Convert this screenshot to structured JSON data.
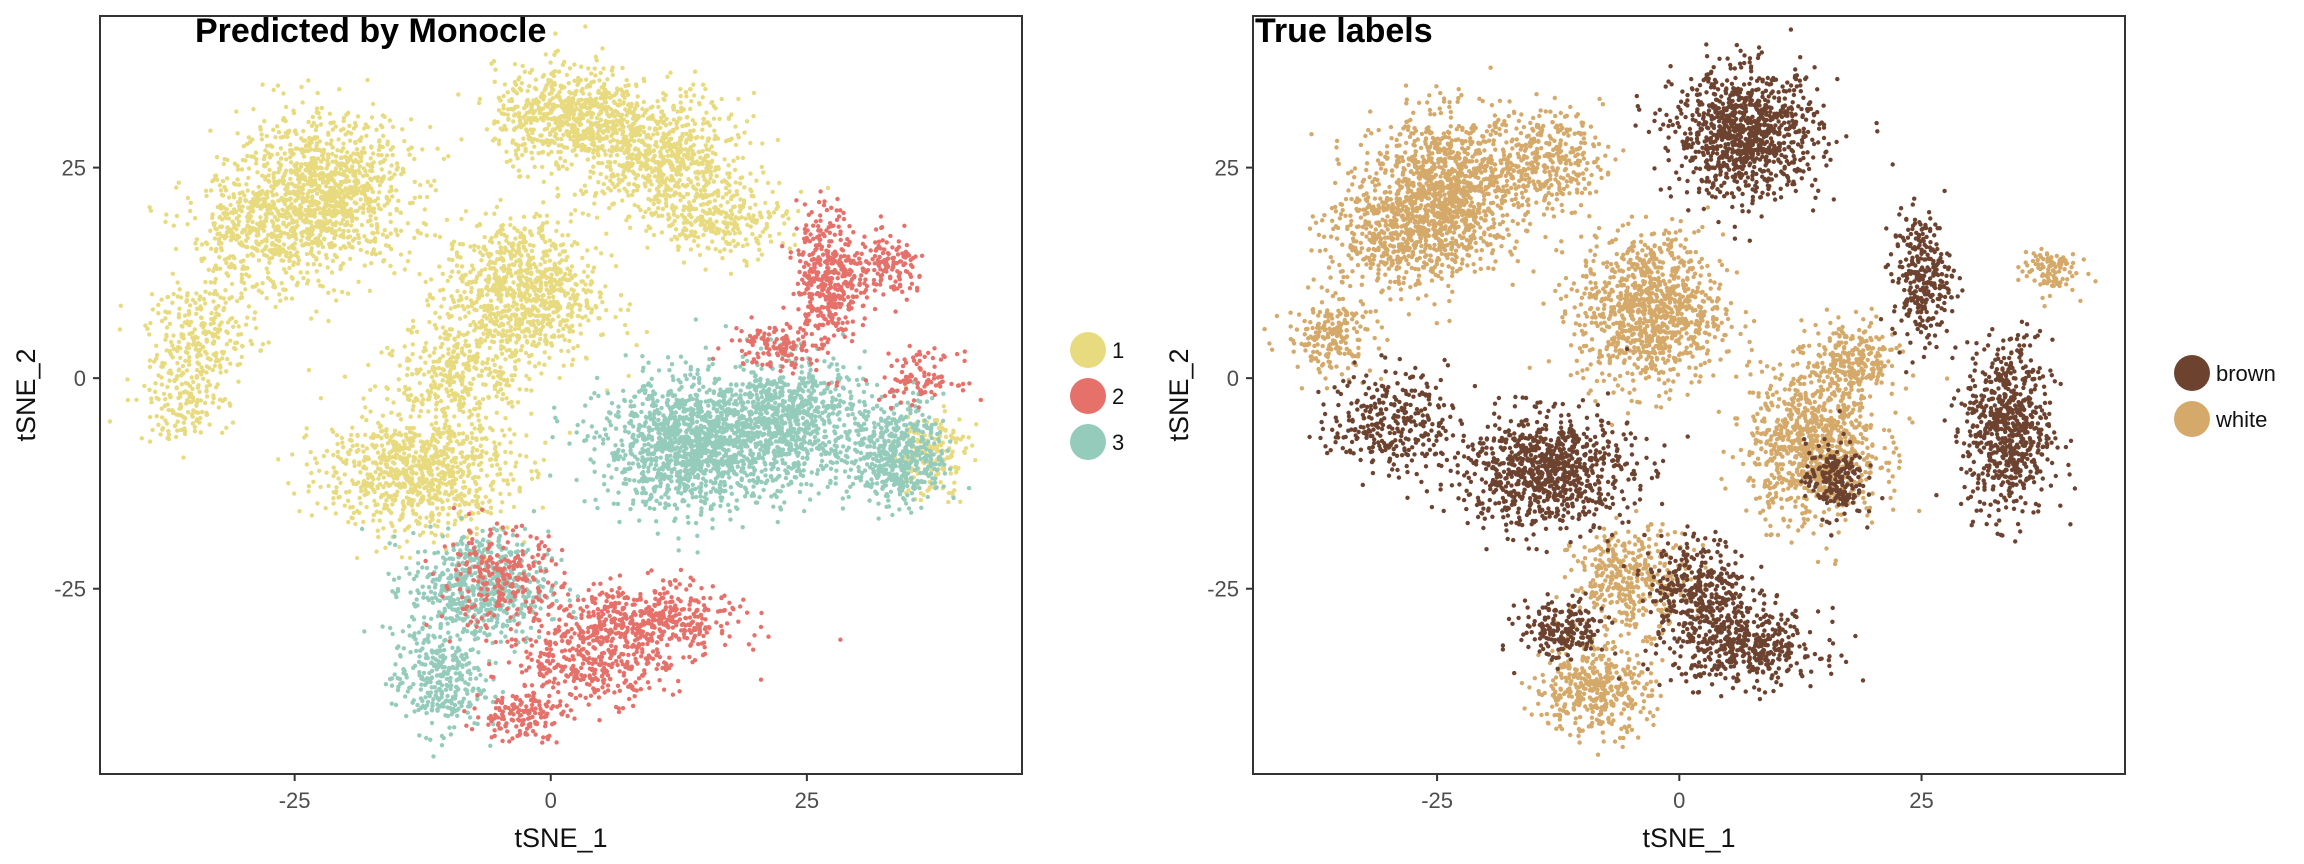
{
  "chart_data": [
    {
      "type": "scatter",
      "title": "Predicted by Monocle",
      "xlabel": "tSNE_1",
      "ylabel": "tSNE_2",
      "xlim": [
        -44,
        46
      ],
      "ylim": [
        -47,
        43
      ],
      "xticks": [
        -25,
        0,
        25
      ],
      "xtick_labels": [
        "-25",
        "0",
        "25"
      ],
      "yticks": [
        25,
        0,
        -25
      ],
      "ytick_labels": [
        "25",
        "0",
        "-25"
      ],
      "grid": false,
      "legend": "right",
      "series": [
        {
          "name": "1",
          "color": "#e8da7e"
        },
        {
          "name": "2",
          "color": "#e5716a"
        },
        {
          "name": "3",
          "color": "#94cbbb"
        }
      ],
      "clusters": [
        {
          "series": "1",
          "x": -22,
          "y": 22,
          "sx": 5.5,
          "sy": 6,
          "n": 1100
        },
        {
          "series": "1",
          "x": -29,
          "y": 17,
          "sx": 4.5,
          "sy": 5,
          "n": 400
        },
        {
          "series": "1",
          "x": -34,
          "y": 5,
          "sx": 3.5,
          "sy": 4,
          "n": 250
        },
        {
          "series": "1",
          "x": -36,
          "y": -3,
          "sx": 3,
          "sy": 3,
          "n": 150
        },
        {
          "series": "1",
          "x": -13,
          "y": -11,
          "sx": 6,
          "sy": 5,
          "n": 900
        },
        {
          "series": "1",
          "x": -9,
          "y": 1,
          "sx": 4,
          "sy": 4,
          "n": 300
        },
        {
          "series": "1",
          "x": -3,
          "y": 10,
          "sx": 5,
          "sy": 6,
          "n": 900
        },
        {
          "series": "1",
          "x": 2,
          "y": 31,
          "sx": 5,
          "sy": 4,
          "n": 700
        },
        {
          "series": "1",
          "x": 11,
          "y": 26,
          "sx": 5,
          "sy": 5,
          "n": 700
        },
        {
          "series": "1",
          "x": 17,
          "y": 19,
          "sx": 4,
          "sy": 3,
          "n": 250
        },
        {
          "series": "1",
          "x": 37,
          "y": -9,
          "sx": 2.5,
          "sy": 3.5,
          "n": 180
        },
        {
          "series": "3",
          "x": 14,
          "y": -8,
          "sx": 6,
          "sy": 5,
          "n": 1300
        },
        {
          "series": "3",
          "x": 23,
          "y": -5,
          "sx": 5,
          "sy": 5,
          "n": 800
        },
        {
          "series": "3",
          "x": 34,
          "y": -9,
          "sx": 3,
          "sy": 4,
          "n": 500
        },
        {
          "series": "3",
          "x": -7,
          "y": -25,
          "sx": 4.5,
          "sy": 4.5,
          "n": 600
        },
        {
          "series": "3",
          "x": -11,
          "y": -36,
          "sx": 3,
          "sy": 4,
          "n": 300
        },
        {
          "series": "2",
          "x": 27,
          "y": 12,
          "sx": 2,
          "sy": 5.5,
          "n": 400
        },
        {
          "series": "2",
          "x": 33,
          "y": 13,
          "sx": 2.5,
          "sy": 2.5,
          "n": 150
        },
        {
          "series": "2",
          "x": 22,
          "y": 4,
          "sx": 3,
          "sy": 2,
          "n": 120
        },
        {
          "series": "2",
          "x": 36,
          "y": 0,
          "sx": 2.5,
          "sy": 2,
          "n": 100
        },
        {
          "series": "2",
          "x": 9,
          "y": -29,
          "sx": 6,
          "sy": 3,
          "n": 500
        },
        {
          "series": "2",
          "x": 4,
          "y": -34,
          "sx": 5,
          "sy": 3,
          "n": 300
        },
        {
          "series": "2",
          "x": -3,
          "y": -40,
          "sx": 3,
          "sy": 2,
          "n": 150
        },
        {
          "series": "2",
          "x": -5,
          "y": -24,
          "sx": 4,
          "sy": 4,
          "n": 250
        }
      ]
    },
    {
      "type": "scatter",
      "title": "True labels",
      "xlabel": "tSNE_1",
      "ylabel": "tSNE_2",
      "xlim": [
        -44,
        46
      ],
      "ylim": [
        -47,
        43
      ],
      "xticks": [
        -25,
        0,
        25
      ],
      "xtick_labels": [
        "-25",
        "0",
        "25"
      ],
      "yticks": [
        25,
        0,
        -25
      ],
      "ytick_labels": [
        "25",
        "0",
        "-25"
      ],
      "grid": false,
      "legend": "right",
      "series": [
        {
          "name": "brown",
          "color": "#6d4330"
        },
        {
          "name": "white",
          "color": "#d4a969"
        }
      ],
      "clusters": [
        {
          "series": "white",
          "x": -24,
          "y": 22,
          "sx": 5,
          "sy": 6,
          "n": 1100
        },
        {
          "series": "white",
          "x": -30,
          "y": 17,
          "sx": 4.5,
          "sy": 5,
          "n": 400
        },
        {
          "series": "white",
          "x": -36,
          "y": 5,
          "sx": 3,
          "sy": 3,
          "n": 200
        },
        {
          "series": "white",
          "x": -14,
          "y": 26,
          "sx": 4,
          "sy": 4,
          "n": 350
        },
        {
          "series": "white",
          "x": -3,
          "y": 8,
          "sx": 5,
          "sy": 6,
          "n": 1000
        },
        {
          "series": "white",
          "x": 38,
          "y": 13,
          "sx": 2,
          "sy": 2,
          "n": 100
        },
        {
          "series": "white",
          "x": 14,
          "y": -8,
          "sx": 4.5,
          "sy": 6,
          "n": 900
        },
        {
          "series": "white",
          "x": 18,
          "y": 2,
          "sx": 3,
          "sy": 3,
          "n": 250
        },
        {
          "series": "white",
          "x": -5,
          "y": -24,
          "sx": 4,
          "sy": 4,
          "n": 400
        },
        {
          "series": "white",
          "x": -9,
          "y": -37,
          "sx": 4,
          "sy": 3.5,
          "n": 400
        },
        {
          "series": "brown",
          "x": 7,
          "y": 29,
          "sx": 5,
          "sy": 5,
          "n": 1000
        },
        {
          "series": "brown",
          "x": -14,
          "y": -11,
          "sx": 6,
          "sy": 4.5,
          "n": 900
        },
        {
          "series": "brown",
          "x": -30,
          "y": -5,
          "sx": 4,
          "sy": 4,
          "n": 300
        },
        {
          "series": "brown",
          "x": 34,
          "y": -6,
          "sx": 3,
          "sy": 7,
          "n": 700
        },
        {
          "series": "brown",
          "x": 25,
          "y": 12,
          "sx": 2,
          "sy": 5,
          "n": 300
        },
        {
          "series": "brown",
          "x": 16,
          "y": -12,
          "sx": 2,
          "sy": 3,
          "n": 200
        },
        {
          "series": "brown",
          "x": 2,
          "y": -25,
          "sx": 3.5,
          "sy": 4,
          "n": 350
        },
        {
          "series": "brown",
          "x": 7,
          "y": -32,
          "sx": 5,
          "sy": 3,
          "n": 450
        },
        {
          "series": "brown",
          "x": -12,
          "y": -30,
          "sx": 3,
          "sy": 2.5,
          "n": 200
        }
      ]
    }
  ]
}
